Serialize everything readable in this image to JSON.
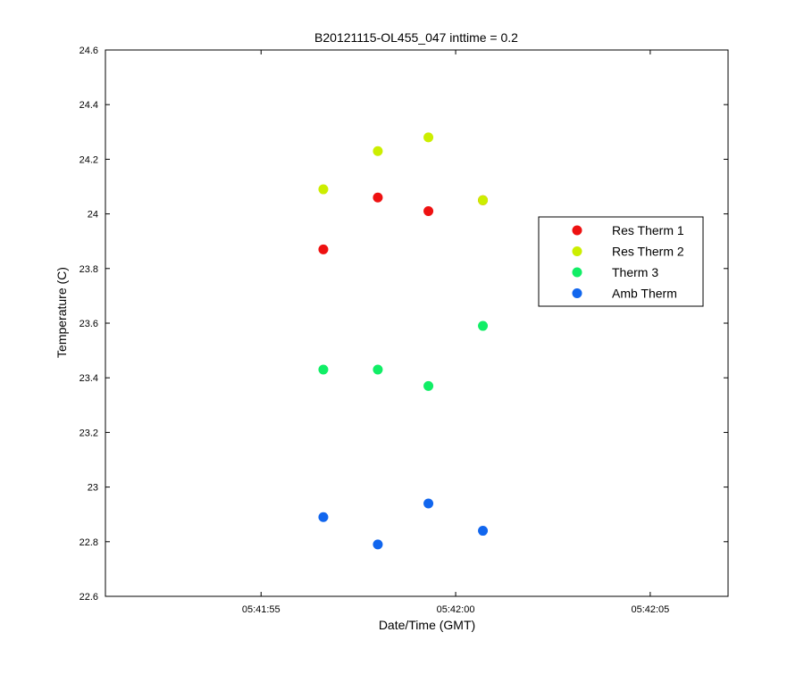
{
  "chart_data": {
    "type": "scatter",
    "title": "B20121115-OL455_047 inttime = 0.2",
    "xlabel": "Date/Time (GMT)",
    "ylabel": "Temperature (C)",
    "xlim": [
      "05:41:51",
      "05:42:07"
    ],
    "ylim": [
      22.6,
      24.6
    ],
    "xticks": [
      "05:41:55",
      "05:42:00",
      "05:42:05"
    ],
    "yticks": [
      "22.6",
      "22.8",
      "23",
      "23.2",
      "23.4",
      "23.6",
      "23.8",
      "24",
      "24.2",
      "24.4",
      "24.6"
    ],
    "grid": false,
    "legend_position": "right",
    "x": [
      "05:41:56.6",
      "05:41:58.0",
      "05:41:59.3",
      "05:42:00.7"
    ],
    "series": [
      {
        "name": "Res Therm 1",
        "color": "#ee1111",
        "values": [
          23.87,
          24.06,
          24.01,
          24.05
        ]
      },
      {
        "name": "Res Therm 2",
        "color": "#ccee00",
        "values": [
          24.09,
          24.23,
          24.28,
          24.05
        ]
      },
      {
        "name": "Therm 3",
        "color": "#11ee66",
        "values": [
          23.43,
          23.43,
          23.37,
          23.59
        ]
      },
      {
        "name": "Amb Therm",
        "color": "#1166ee",
        "values": [
          22.89,
          22.79,
          22.94,
          22.84
        ]
      }
    ]
  }
}
